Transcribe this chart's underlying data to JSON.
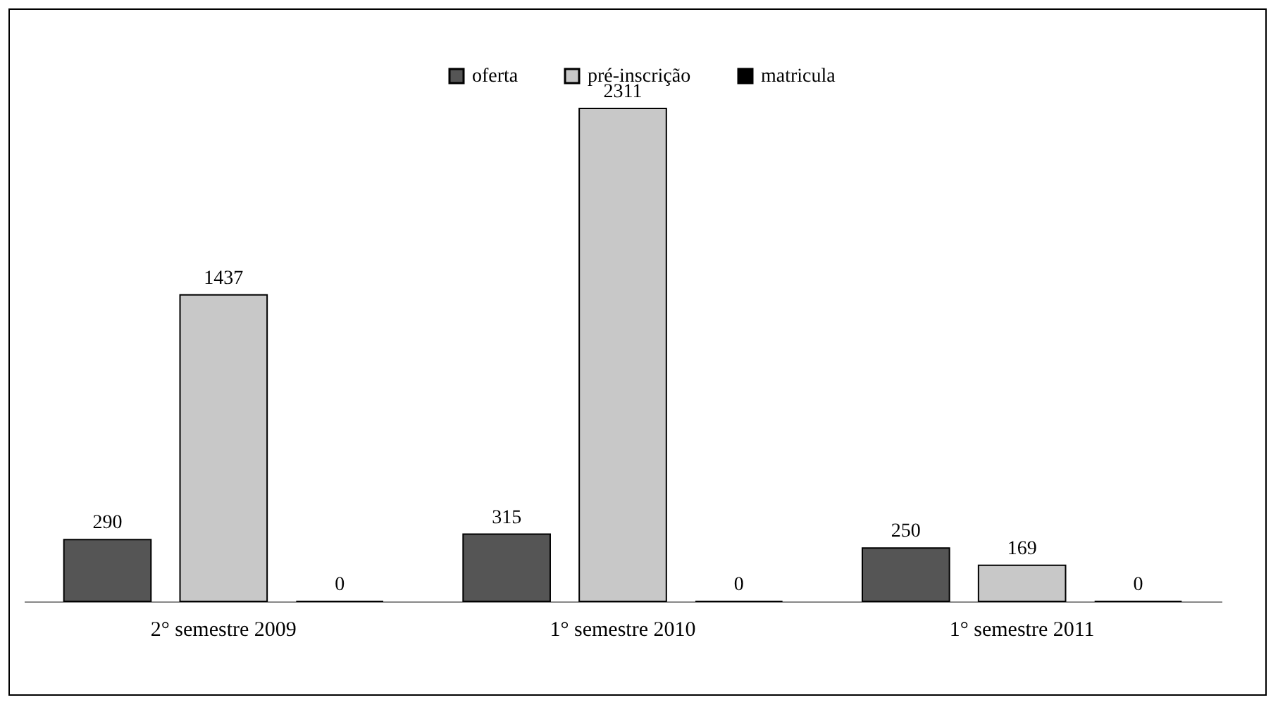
{
  "chart_data": {
    "type": "bar",
    "categories": [
      "2° semestre 2009",
      "1° semestre 2010",
      "1° semestre 2011"
    ],
    "series": [
      {
        "name": "oferta",
        "color": "#555555",
        "values": [
          290,
          315,
          250
        ]
      },
      {
        "name": "pré-inscrição",
        "color": "#c8c8c8",
        "values": [
          1437,
          2311,
          169
        ]
      },
      {
        "name": "matricula",
        "color": "#000000",
        "values": [
          0,
          0,
          0
        ]
      }
    ],
    "data_labels": true,
    "legend": "top",
    "tick_labels": "x"
  }
}
